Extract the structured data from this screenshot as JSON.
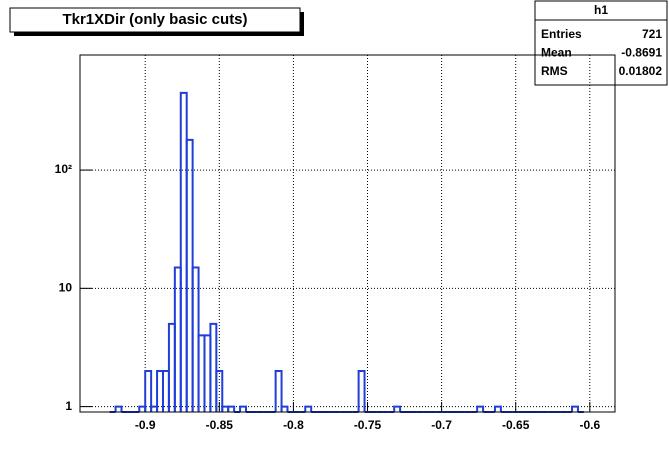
{
  "chart_data": {
    "type": "histogram",
    "title": "Tkr1XDir (only basic cuts)",
    "bins": [
      -0.924,
      -0.92,
      -0.916,
      -0.912,
      -0.908,
      -0.904,
      -0.9,
      -0.896,
      -0.892,
      -0.888,
      -0.884,
      -0.88,
      -0.876,
      -0.872,
      -0.868,
      -0.864,
      -0.86,
      -0.856,
      -0.852,
      -0.848,
      -0.844,
      -0.84,
      -0.836,
      -0.832,
      -0.828,
      -0.824,
      -0.82,
      -0.816,
      -0.812,
      -0.808,
      -0.804,
      -0.8,
      -0.796,
      -0.792,
      -0.788,
      -0.784,
      -0.78,
      -0.776,
      -0.772,
      -0.768,
      -0.764,
      -0.76,
      -0.756,
      -0.752,
      -0.748,
      -0.744,
      -0.74,
      -0.736,
      -0.732,
      -0.728,
      -0.724,
      -0.72,
      -0.716,
      -0.712,
      -0.708,
      -0.704,
      -0.7,
      -0.696,
      -0.692,
      -0.688,
      -0.684,
      -0.68,
      -0.676,
      -0.672,
      -0.668,
      -0.664,
      -0.66,
      -0.656,
      -0.652,
      -0.648,
      -0.644,
      -0.64,
      -0.636,
      -0.632,
      -0.628,
      -0.624,
      -0.62,
      -0.616,
      -0.612,
      -0.608,
      -0.604
    ],
    "values": [
      0,
      1,
      0,
      0,
      0,
      1,
      2,
      1,
      2,
      2,
      5,
      15,
      450,
      180,
      15,
      4,
      4,
      5,
      2,
      1,
      1,
      0,
      1,
      0,
      0,
      0,
      0,
      0,
      2,
      1,
      0,
      0,
      0,
      1,
      0,
      0,
      0,
      0,
      0,
      0,
      0,
      0,
      2,
      0,
      0,
      0,
      0,
      0,
      1,
      0,
      0,
      0,
      0,
      0,
      0,
      0,
      0,
      0,
      0,
      0,
      0,
      0,
      1,
      0,
      0,
      1,
      0,
      0,
      0,
      0,
      0,
      0,
      0,
      0,
      0,
      0,
      0,
      0,
      1,
      0
    ],
    "color": "#1f3fd8",
    "xlim": [
      -0.944,
      -0.583
    ],
    "xticks": [
      -0.9,
      -0.85,
      -0.8,
      -0.75,
      -0.7,
      -0.65,
      -0.6
    ],
    "ylim": [
      0.9,
      940
    ],
    "yticks": [
      1,
      10,
      {
        "value": 100,
        "label": "10²"
      }
    ],
    "log_y": true,
    "grid": true,
    "stats": {
      "title": "h1",
      "rows": [
        {
          "label": "Entries",
          "value": 721
        },
        {
          "label": "Mean",
          "value": -0.8691
        },
        {
          "label": "RMS",
          "value": 0.01802
        }
      ]
    }
  }
}
